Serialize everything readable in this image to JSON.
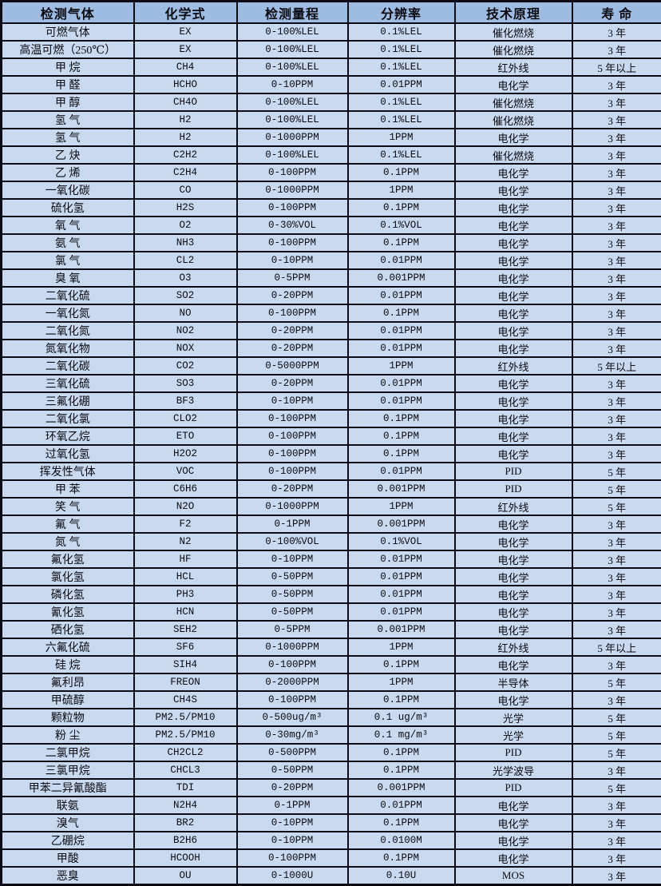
{
  "table": {
    "columns": [
      "检测气体",
      "化学式",
      "检测量程",
      "分辨率",
      "技术原理",
      "寿  命"
    ],
    "rows": [
      [
        "可燃气体",
        "EX",
        "0-100%LEL",
        "0.1%LEL",
        "催化燃烧",
        "3 年"
      ],
      [
        "高温可燃（250℃）",
        "EX",
        "0-100%LEL",
        "0.1%LEL",
        "催化燃烧",
        "3 年"
      ],
      [
        "甲 烷",
        "CH4",
        "0-100%LEL",
        "0.1%LEL",
        "红外线",
        "5 年以上"
      ],
      [
        "甲 醛",
        "HCHO",
        "0-10PPM",
        "0.01PPM",
        "电化学",
        "3 年"
      ],
      [
        "甲 醇",
        "CH4O",
        "0-100%LEL",
        "0.1%LEL",
        "催化燃烧",
        "3 年"
      ],
      [
        "氢 气",
        "H2",
        "0-100%LEL",
        "0.1%LEL",
        "催化燃烧",
        "3 年"
      ],
      [
        "氢 气",
        "H2",
        "0-1000PPM",
        "1PPM",
        "电化学",
        "3 年"
      ],
      [
        "乙 炔",
        "C2H2",
        "0-100%LEL",
        "0.1%LEL",
        "催化燃烧",
        "3 年"
      ],
      [
        "乙 烯",
        "C2H4",
        "0-100PPM",
        "0.1PPM",
        "电化学",
        "3 年"
      ],
      [
        "一氧化碳",
        "CO",
        "0-1000PPM",
        "1PPM",
        "电化学",
        "3 年"
      ],
      [
        "硫化氢",
        "H2S",
        "0-100PPM",
        "0.1PPM",
        "电化学",
        "3 年"
      ],
      [
        "氧 气",
        "O2",
        "0-30%VOL",
        "0.1%VOL",
        "电化学",
        "3 年"
      ],
      [
        "氨 气",
        "NH3",
        "0-100PPM",
        "0.1PPM",
        "电化学",
        "3 年"
      ],
      [
        "氯 气",
        "CL2",
        "0-10PPM",
        "0.01PPM",
        "电化学",
        "3 年"
      ],
      [
        "臭 氧",
        "O3",
        "0-5PPM",
        "0.001PPM",
        "电化学",
        "3 年"
      ],
      [
        "二氧化硫",
        "SO2",
        "0-20PPM",
        "0.01PPM",
        "电化学",
        "3 年"
      ],
      [
        "一氧化氮",
        "NO",
        "0-100PPM",
        "0.1PPM",
        "电化学",
        "3 年"
      ],
      [
        "二氧化氮",
        "NO2",
        "0-20PPM",
        "0.01PPM",
        "电化学",
        "3 年"
      ],
      [
        "氮氧化物",
        "NOX",
        "0-20PPM",
        "0.01PPM",
        "电化学",
        "3 年"
      ],
      [
        "二氧化碳",
        "CO2",
        "0-5000PPM",
        "1PPM",
        "红外线",
        "5 年以上"
      ],
      [
        "三氧化硫",
        "SO3",
        "0-20PPM",
        "0.01PPM",
        "电化学",
        "3 年"
      ],
      [
        "三氟化硼",
        "BF3",
        "0-10PPM",
        "0.01PPM",
        "电化学",
        "3 年"
      ],
      [
        "二氧化氯",
        "CLO2",
        "0-100PPM",
        "0.1PPM",
        "电化学",
        "3 年"
      ],
      [
        "环氧乙烷",
        "ETO",
        "0-100PPM",
        "0.1PPM",
        "电化学",
        "3 年"
      ],
      [
        "过氧化氢",
        "H2O2",
        "0-100PPM",
        "0.1PPM",
        "电化学",
        "3 年"
      ],
      [
        "挥发性气体",
        "VOC",
        "0-100PPM",
        "0.01PPM",
        "PID",
        "5 年"
      ],
      [
        "甲 苯",
        "C6H6",
        "0-20PPM",
        "0.001PPM",
        "PID",
        "5 年"
      ],
      [
        "笑 气",
        "N2O",
        "0-1000PPM",
        "1PPM",
        "红外线",
        "5 年"
      ],
      [
        "氟 气",
        "F2",
        "0-1PPM",
        "0.001PPM",
        "电化学",
        "3 年"
      ],
      [
        "氮 气",
        "N2",
        "0-100%VOL",
        "0.1%VOL",
        "电化学",
        "3 年"
      ],
      [
        "氟化氢",
        "HF",
        "0-10PPM",
        "0.01PPM",
        "电化学",
        "3 年"
      ],
      [
        "氯化氢",
        "HCL",
        "0-50PPM",
        "0.01PPM",
        "电化学",
        "3 年"
      ],
      [
        "磷化氢",
        "PH3",
        "0-50PPM",
        "0.01PPM",
        "电化学",
        "3 年"
      ],
      [
        "氰化氢",
        "HCN",
        "0-50PPM",
        "0.01PPM",
        "电化学",
        "3 年"
      ],
      [
        "硒化氢",
        "SEH2",
        "0-5PPM",
        "0.001PPM",
        "电化学",
        "3 年"
      ],
      [
        "六氟化硫",
        "SF6",
        "0-1000PPM",
        "1PPM",
        "红外线",
        "5 年以上"
      ],
      [
        "硅 烷",
        "SIH4",
        "0-100PPM",
        "0.1PPM",
        "电化学",
        "3 年"
      ],
      [
        "氟利昂",
        "FREON",
        "0-2000PPM",
        "1PPM",
        "半导体",
        "5 年"
      ],
      [
        "甲硫醇",
        "CH4S",
        "0-100PPM",
        "0.1PPM",
        "电化学",
        "3 年"
      ],
      [
        "颗粒物",
        "PM2.5/PM10",
        "0-500ug/m³",
        "0.1 ug/m³",
        "光学",
        "5 年"
      ],
      [
        "粉 尘",
        "PM2.5/PM10",
        "0-30mg/m³",
        "0.1 mg/m³",
        "光学",
        "5 年"
      ],
      [
        "二氯甲烷",
        "CH2CL2",
        "0-500PPM",
        "0.1PPM",
        "PID",
        "5 年"
      ],
      [
        "三氯甲烷",
        "CHCL3",
        "0-50PPM",
        "0.1PPM",
        "光学波导",
        "3 年"
      ],
      [
        "甲苯二异氰酸酯",
        "TDI",
        "0-20PPM",
        "0.001PPM",
        "PID",
        "5 年"
      ],
      [
        "联氨",
        "N2H4",
        "0-1PPM",
        "0.01PPM",
        "电化学",
        "3 年"
      ],
      [
        "溴气",
        "BR2",
        "0-10PPM",
        "0.1PPM",
        "电化学",
        "3 年"
      ],
      [
        "乙硼烷",
        "B2H6",
        "0-10PPM",
        "0.0100M",
        "电化学",
        "3 年"
      ],
      [
        "甲酸",
        "HCOOH",
        "0-100PPM",
        "0.1PPM",
        "电化学",
        "3 年"
      ],
      [
        "恶臭",
        "OU",
        "0-1000U",
        "0.10U",
        "MOS",
        "3 年"
      ]
    ]
  },
  "colors": {
    "header_bg": "#9ebce1",
    "row_bg": "#c9daf0",
    "border": "#0c0c18",
    "text": "#0a0a12"
  }
}
